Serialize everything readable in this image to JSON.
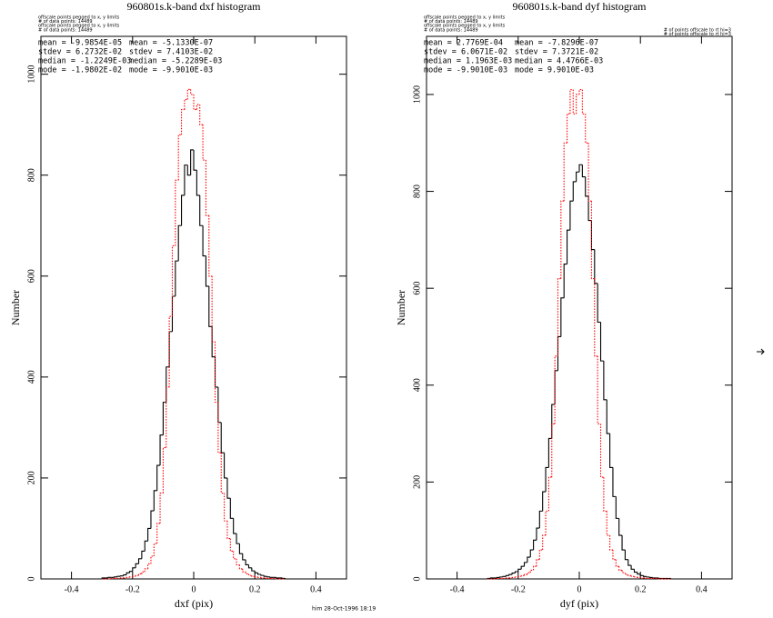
{
  "chart_data": [
    {
      "type": "histogram",
      "title": "960801s.k-band dxf histogram",
      "notes": [
        "offscale points pegged to x, y limits",
        "# of data points: 14489",
        "offscale points pegged to x, y limits",
        "# of data points: 14489"
      ],
      "notes_right": [],
      "stats": [
        [
          "mean = -9.9854E-05",
          "mean = -5.1330E-07"
        ],
        [
          "stdev = 6.2732E-02",
          "stdev = 7.4103E-02"
        ],
        [
          "median = -1.2249E-03",
          "median = -5.2289E-03"
        ],
        [
          "mode = -1.9802E-02",
          "mode = -9.9010E-03"
        ]
      ],
      "x_label": "dxf (pix)",
      "y_label": "Number",
      "xlim": [
        -0.5,
        0.5
      ],
      "ylim": [
        0,
        1075
      ],
      "xticks": [
        -0.4,
        -0.2,
        0,
        0.2,
        0.4
      ],
      "yticks": [
        0,
        200,
        400,
        600,
        800,
        1000
      ],
      "bins": [
        -0.3,
        -0.29,
        -0.28,
        -0.27,
        -0.26,
        -0.25,
        -0.24,
        -0.23,
        -0.22,
        -0.21,
        -0.2,
        -0.19,
        -0.18,
        -0.17,
        -0.16,
        -0.15,
        -0.14,
        -0.13,
        -0.12,
        -0.11,
        -0.1,
        -0.09,
        -0.08,
        -0.07,
        -0.06,
        -0.05,
        -0.04,
        -0.03,
        -0.02,
        -0.01,
        0,
        0.01,
        0.02,
        0.03,
        0.04,
        0.05,
        0.06,
        0.07,
        0.08,
        0.09,
        0.1,
        0.11,
        0.12,
        0.13,
        0.14,
        0.15,
        0.16,
        0.17,
        0.18,
        0.19,
        0.2,
        0.21,
        0.22,
        0.23,
        0.24,
        0.25,
        0.26,
        0.27,
        0.28,
        0.29,
        0.3
      ],
      "series": [
        {
          "color": "#000000",
          "style": "solid",
          "values": [
            2,
            2,
            3,
            3,
            4,
            5,
            6,
            8,
            12,
            15,
            22,
            30,
            40,
            55,
            75,
            100,
            135,
            175,
            225,
            285,
            350,
            420,
            490,
            560,
            630,
            700,
            760,
            820,
            800,
            850,
            810,
            760,
            700,
            640,
            580,
            500,
            440,
            380,
            310,
            250,
            200,
            160,
            120,
            90,
            70,
            50,
            38,
            28,
            22,
            16,
            12,
            9,
            7,
            5,
            4,
            3,
            3,
            2,
            2,
            1
          ]
        },
        {
          "color": "#ff0000",
          "style": "dotted",
          "values": [
            0,
            0,
            0,
            1,
            1,
            1,
            2,
            2,
            3,
            4,
            5,
            7,
            10,
            14,
            20,
            30,
            45,
            70,
            110,
            170,
            260,
            380,
            520,
            660,
            790,
            880,
            930,
            950,
            970,
            960,
            930,
            940,
            900,
            830,
            720,
            600,
            470,
            350,
            250,
            170,
            115,
            80,
            55,
            40,
            28,
            20,
            14,
            10,
            7,
            5,
            4,
            3,
            2,
            2,
            1,
            1,
            1,
            0,
            0,
            0
          ]
        }
      ]
    },
    {
      "type": "histogram",
      "title": "960801s.k-band dyf histogram",
      "notes": [
        "offscale points pegged to x, y limits",
        "# of data points: 14489",
        "offscale points pegged to x, y limits",
        "# of data points: 14489"
      ],
      "notes_right": [
        "# of points offscale to rt hi=3",
        "# of points offscale to rt hi=3"
      ],
      "stats": [
        [
          "mean = 2.7769E-04",
          "mean = -7.8296E-07"
        ],
        [
          "stdev = 6.0671E-02",
          "stdev = 7.3721E-02"
        ],
        [
          "median = 1.1963E-03",
          "median = 4.4766E-03"
        ],
        [
          "mode = -9.9010E-03",
          "mode = 9.9010E-03"
        ]
      ],
      "x_label": "dyf (pix)",
      "y_label": "Number",
      "xlim": [
        -0.5,
        0.5
      ],
      "ylim": [
        0,
        1120
      ],
      "xticks": [
        -0.4,
        -0.2,
        0,
        0.2,
        0.4
      ],
      "yticks": [
        0,
        200,
        400,
        600,
        800,
        1000
      ],
      "bins": [
        -0.3,
        -0.29,
        -0.28,
        -0.27,
        -0.26,
        -0.25,
        -0.24,
        -0.23,
        -0.22,
        -0.21,
        -0.2,
        -0.19,
        -0.18,
        -0.17,
        -0.16,
        -0.15,
        -0.14,
        -0.13,
        -0.12,
        -0.11,
        -0.1,
        -0.09,
        -0.08,
        -0.07,
        -0.06,
        -0.05,
        -0.04,
        -0.03,
        -0.02,
        -0.01,
        0,
        0.01,
        0.02,
        0.03,
        0.04,
        0.05,
        0.06,
        0.07,
        0.08,
        0.09,
        0.1,
        0.11,
        0.12,
        0.13,
        0.14,
        0.15,
        0.16,
        0.17,
        0.18,
        0.19,
        0.2,
        0.21,
        0.22,
        0.23,
        0.24,
        0.25,
        0.26,
        0.27,
        0.28,
        0.29,
        0.3
      ],
      "series": [
        {
          "color": "#000000",
          "style": "solid",
          "values": [
            1,
            2,
            2,
            3,
            4,
            5,
            7,
            9,
            12,
            15,
            20,
            26,
            34,
            45,
            60,
            80,
            105,
            140,
            180,
            230,
            290,
            360,
            430,
            500,
            580,
            650,
            720,
            780,
            820,
            840,
            855,
            830,
            790,
            740,
            680,
            610,
            530,
            450,
            370,
            300,
            230,
            170,
            125,
            90,
            60,
            40,
            28,
            20,
            14,
            10,
            7,
            5,
            4,
            3,
            2,
            2,
            1,
            1,
            1,
            1
          ]
        },
        {
          "color": "#ff0000",
          "style": "dotted",
          "values": [
            0,
            0,
            0,
            1,
            1,
            1,
            2,
            2,
            3,
            4,
            5,
            7,
            9,
            13,
            18,
            26,
            40,
            60,
            90,
            140,
            210,
            320,
            460,
            620,
            780,
            900,
            960,
            1010,
            960,
            1000,
            1010,
            960,
            900,
            780,
            620,
            460,
            320,
            210,
            140,
            90,
            60,
            40,
            26,
            18,
            13,
            9,
            7,
            5,
            4,
            3,
            2,
            2,
            1,
            1,
            1,
            1,
            0,
            0,
            0,
            0
          ]
        }
      ]
    }
  ],
  "footer": "him 28-Oct-1996 18:19"
}
